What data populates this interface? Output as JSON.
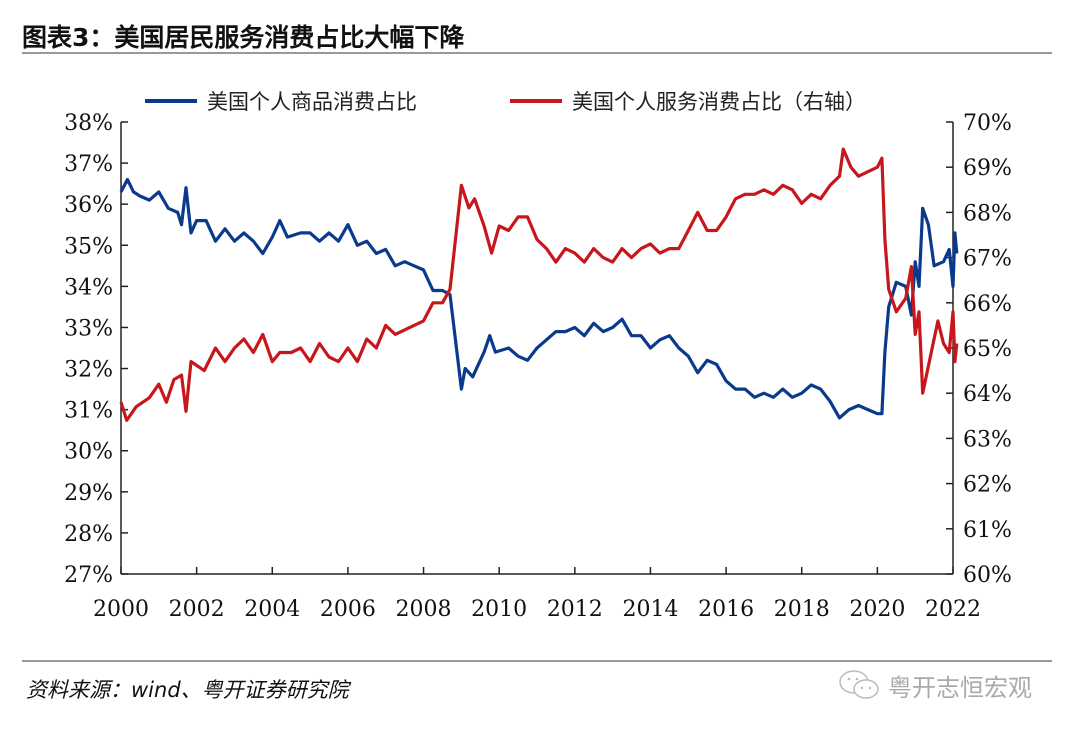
{
  "title": "图表3：美国居民服务消费占比大幅下降",
  "source": "资料来源：wind、粤开证券研究院",
  "watermark": {
    "text": "粤开志恒宏观",
    "icon": "wechat-icon"
  },
  "chart_data": {
    "type": "line",
    "legend_position": "top",
    "grid": false,
    "x_ticks": [
      "2000",
      "2002",
      "2004",
      "2006",
      "2008",
      "2010",
      "2012",
      "2014",
      "2016",
      "2018",
      "2020",
      "2022"
    ],
    "xlim": [
      2000,
      2022.1
    ],
    "y_left": {
      "lim": [
        27,
        38
      ],
      "ticks": [
        "27%",
        "28%",
        "29%",
        "30%",
        "31%",
        "32%",
        "33%",
        "34%",
        "35%",
        "36%",
        "37%",
        "38%"
      ]
    },
    "y_right": {
      "lim": [
        60,
        70
      ],
      "ticks": [
        "60%",
        "61%",
        "62%",
        "63%",
        "64%",
        "65%",
        "66%",
        "67%",
        "68%",
        "69%",
        "70%"
      ]
    },
    "series": [
      {
        "name": "美国个人商品消费占比",
        "axis": "left",
        "color": "#0a3a8c",
        "x": [
          2000.0,
          2000.17,
          2000.33,
          2000.5,
          2000.75,
          2001.0,
          2001.25,
          2001.5,
          2001.6,
          2001.72,
          2001.85,
          2002.0,
          2002.25,
          2002.5,
          2002.75,
          2003.0,
          2003.25,
          2003.5,
          2003.75,
          2004.0,
          2004.2,
          2004.4,
          2004.75,
          2005.0,
          2005.25,
          2005.5,
          2005.75,
          2006.0,
          2006.25,
          2006.5,
          2006.75,
          2007.0,
          2007.25,
          2007.5,
          2007.75,
          2008.0,
          2008.25,
          2008.5,
          2008.7,
          2009.0,
          2009.1,
          2009.3,
          2009.6,
          2009.75,
          2009.9,
          2010.25,
          2010.5,
          2010.75,
          2011.0,
          2011.25,
          2011.5,
          2011.75,
          2012.0,
          2012.25,
          2012.5,
          2012.75,
          2013.0,
          2013.25,
          2013.5,
          2013.75,
          2014.0,
          2014.25,
          2014.5,
          2014.75,
          2015.0,
          2015.25,
          2015.5,
          2015.75,
          2016.0,
          2016.25,
          2016.5,
          2016.75,
          2017.0,
          2017.25,
          2017.5,
          2017.75,
          2018.0,
          2018.25,
          2018.5,
          2018.75,
          2019.0,
          2019.25,
          2019.5,
          2019.75,
          2020.0,
          2020.12,
          2020.2,
          2020.3,
          2020.5,
          2020.75,
          2020.9,
          2021.0,
          2021.1,
          2021.2,
          2021.35,
          2021.5,
          2021.75,
          2021.9,
          2022.0,
          2022.05,
          2022.1
        ],
        "values": [
          36.3,
          36.6,
          36.3,
          36.2,
          36.1,
          36.3,
          35.9,
          35.8,
          35.5,
          36.4,
          35.3,
          35.6,
          35.6,
          35.1,
          35.4,
          35.1,
          35.3,
          35.1,
          34.8,
          35.2,
          35.6,
          35.2,
          35.3,
          35.3,
          35.1,
          35.3,
          35.1,
          35.5,
          35.0,
          35.1,
          34.8,
          34.9,
          34.5,
          34.6,
          34.5,
          34.4,
          33.9,
          33.9,
          33.8,
          31.5,
          32.0,
          31.8,
          32.4,
          32.8,
          32.4,
          32.5,
          32.3,
          32.2,
          32.5,
          32.7,
          32.9,
          32.9,
          33.0,
          32.8,
          33.1,
          32.9,
          33.0,
          33.2,
          32.8,
          32.8,
          32.5,
          32.7,
          32.8,
          32.5,
          32.3,
          31.9,
          32.2,
          32.1,
          31.7,
          31.5,
          31.5,
          31.3,
          31.4,
          31.3,
          31.5,
          31.3,
          31.4,
          31.6,
          31.5,
          31.2,
          30.8,
          31.0,
          31.1,
          31.0,
          30.9,
          30.9,
          32.4,
          33.5,
          34.1,
          34.0,
          33.3,
          34.6,
          34.0,
          35.9,
          35.5,
          34.5,
          34.6,
          34.9,
          34.0,
          35.3,
          34.8
        ]
      },
      {
        "name": "美国个人服务消费占比（右轴）",
        "axis": "right",
        "color": "#c8161d",
        "x": [
          2000.0,
          2000.15,
          2000.4,
          2000.75,
          2001.0,
          2001.2,
          2001.4,
          2001.6,
          2001.72,
          2001.85,
          2002.2,
          2002.5,
          2002.75,
          2003.0,
          2003.25,
          2003.5,
          2003.75,
          2004.0,
          2004.2,
          2004.5,
          2004.75,
          2005.0,
          2005.25,
          2005.5,
          2005.75,
          2006.0,
          2006.25,
          2006.5,
          2006.75,
          2007.0,
          2007.25,
          2007.5,
          2007.75,
          2008.0,
          2008.25,
          2008.5,
          2008.7,
          2009.0,
          2009.2,
          2009.35,
          2009.6,
          2009.8,
          2010.0,
          2010.25,
          2010.5,
          2010.75,
          2011.0,
          2011.25,
          2011.5,
          2011.75,
          2012.0,
          2012.25,
          2012.5,
          2012.75,
          2013.0,
          2013.25,
          2013.5,
          2013.75,
          2014.0,
          2014.25,
          2014.5,
          2014.75,
          2015.0,
          2015.25,
          2015.5,
          2015.75,
          2016.0,
          2016.25,
          2016.5,
          2016.75,
          2017.0,
          2017.25,
          2017.5,
          2017.75,
          2018.0,
          2018.25,
          2018.5,
          2018.75,
          2019.0,
          2019.1,
          2019.3,
          2019.5,
          2019.75,
          2020.0,
          2020.12,
          2020.2,
          2020.3,
          2020.5,
          2020.75,
          2020.9,
          2021.0,
          2021.1,
          2021.2,
          2021.4,
          2021.6,
          2021.75,
          2021.9,
          2022.0,
          2022.05,
          2022.1
        ],
        "values": [
          63.8,
          63.4,
          63.7,
          63.9,
          64.2,
          63.8,
          64.3,
          64.4,
          63.6,
          64.7,
          64.5,
          65.0,
          64.7,
          65.0,
          65.2,
          64.9,
          65.3,
          64.7,
          64.9,
          64.9,
          65.0,
          64.7,
          65.1,
          64.8,
          64.7,
          65.0,
          64.7,
          65.2,
          65.0,
          65.5,
          65.3,
          65.4,
          65.5,
          65.6,
          66.0,
          66.0,
          66.3,
          68.6,
          68.1,
          68.3,
          67.7,
          67.1,
          67.7,
          67.6,
          67.9,
          67.9,
          67.4,
          67.2,
          66.9,
          67.2,
          67.1,
          66.9,
          67.2,
          67.0,
          66.9,
          67.2,
          67.0,
          67.2,
          67.3,
          67.1,
          67.2,
          67.2,
          67.6,
          68.0,
          67.6,
          67.6,
          67.9,
          68.3,
          68.4,
          68.4,
          68.5,
          68.4,
          68.6,
          68.5,
          68.2,
          68.4,
          68.3,
          68.6,
          68.8,
          69.4,
          69.0,
          68.8,
          68.9,
          69.0,
          69.2,
          67.4,
          66.3,
          65.8,
          66.1,
          66.8,
          65.3,
          65.8,
          64.0,
          64.8,
          65.6,
          65.1,
          64.9,
          65.8,
          64.7,
          65.1
        ]
      }
    ]
  }
}
